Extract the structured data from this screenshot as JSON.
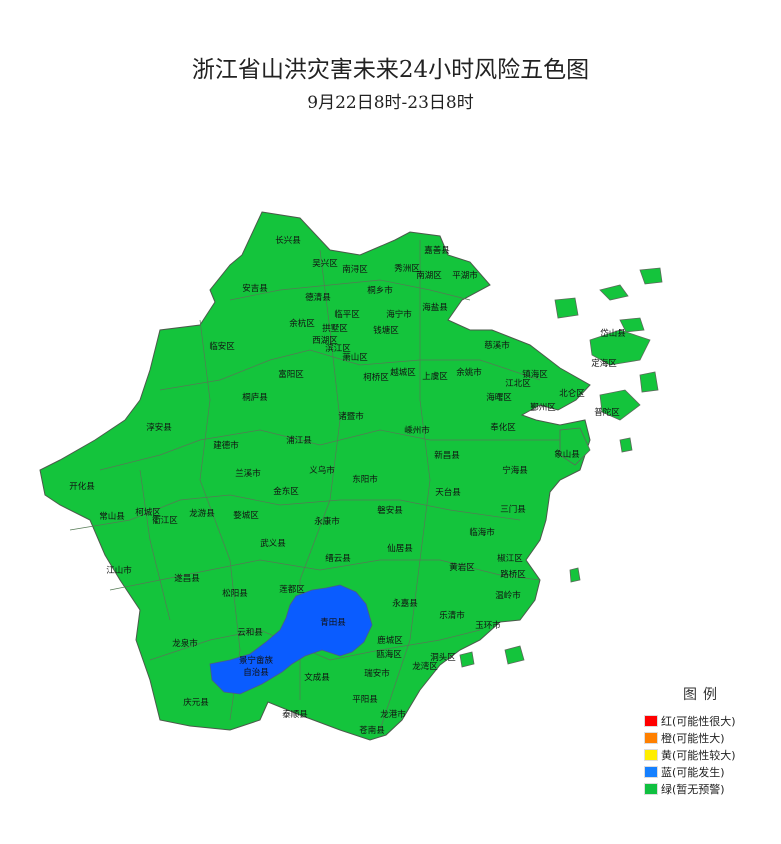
{
  "header": {
    "title": "浙江省山洪灾害未来24小时风险五色图",
    "subtitle": "9月22日8时-23日8时"
  },
  "map": {
    "base_level": "绿(暂无预警)",
    "base_color": "#14c43c",
    "border_color": "#5a6b5a",
    "regions": [
      "长兴县",
      "吴兴区",
      "南浔区",
      "秀洲区",
      "嘉善县",
      "南湖区",
      "平湖市",
      "安吉县",
      "德清县",
      "桐乡市",
      "临平区",
      "海宁市",
      "海盐县",
      "余杭区",
      "拱墅区",
      "钱塘区",
      "西湖区",
      "滨江区",
      "萧山区",
      "临安区",
      "富阳区",
      "柯桥区",
      "越城区",
      "上虞区",
      "余姚市",
      "桐庐县",
      "慈溪市",
      "镇海区",
      "江北区",
      "北仑区",
      "海曙区",
      "鄞州区",
      "定海区",
      "岱山县",
      "普陀区",
      "嵊州市",
      "奉化区",
      "新昌县",
      "象山县",
      "宁海县",
      "天台县",
      "三门县",
      "淳安县",
      "建德市",
      "浦江县",
      "诸暨市",
      "兰溪市",
      "义乌市",
      "东阳市",
      "开化县",
      "金东区",
      "常山县",
      "柯城区",
      "衢江区",
      "龙游县",
      "婺城区",
      "永康市",
      "磐安县",
      "武义县",
      "缙云县",
      "江山市",
      "遂昌县",
      "仙居县",
      "松阳县",
      "莲都区",
      "青田县",
      "永嘉县",
      "黄岩区",
      "路桥区",
      "椒江区",
      "临海市",
      "温岭市",
      "乐清市",
      "玉环市",
      "云和县",
      "龙泉市",
      "鹿城区",
      "瓯海区",
      "洞头区",
      "龙湾区",
      "景宁畲族",
      "自治县",
      "文成县",
      "瑞安市",
      "庆元县",
      "平阳县",
      "泰顺县",
      "龙港市",
      "苍南县"
    ],
    "warned_regions": [
      {
        "name": "青田县",
        "level": "蓝(可能发生)",
        "color": "#0a5cff"
      },
      {
        "name": "景宁畲族自治县",
        "level": "蓝(可能发生)",
        "color": "#0a5cff"
      }
    ]
  },
  "legend": {
    "title": "图例",
    "items": [
      {
        "label": "红(可能性很大)",
        "color": "#ff0000"
      },
      {
        "label": "橙(可能性大)",
        "color": "#ff8000"
      },
      {
        "label": "黄(可能性较大)",
        "color": "#ffee00"
      },
      {
        "label": "蓝(可能发生)",
        "color": "#1580ff"
      },
      {
        "label": "绿(暂无预警)",
        "color": "#10c040"
      }
    ]
  }
}
